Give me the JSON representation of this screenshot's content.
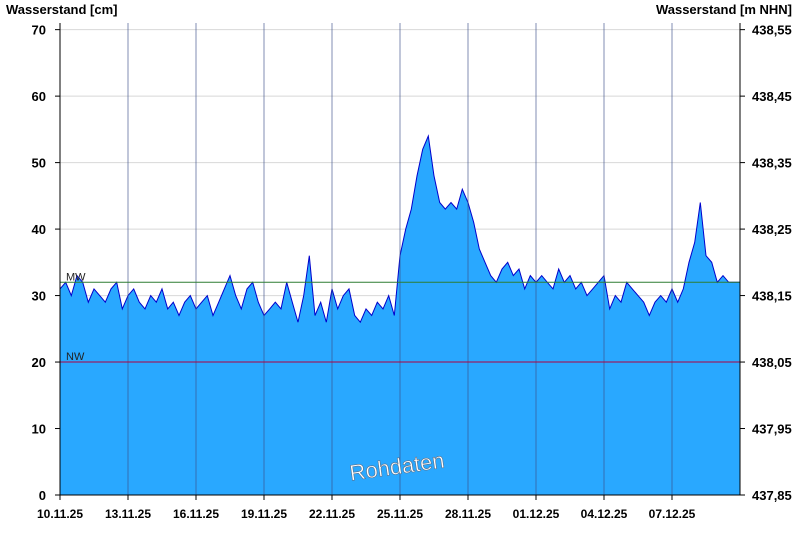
{
  "chart_data": {
    "type": "area",
    "title": "",
    "ylabel_left": "Wasserstand [cm]",
    "ylabel_right": "Wasserstand [m NHN]",
    "ylim": [
      0,
      71
    ],
    "yticks_left": [
      "0",
      "10",
      "20",
      "30",
      "40",
      "50",
      "60",
      "70"
    ],
    "yticks_right": [
      "437,85",
      "437,95",
      "438,05",
      "438,15",
      "438,25",
      "438,35",
      "438,45",
      "438,55"
    ],
    "xlim": [
      "10.11.25",
      "10.12.25"
    ],
    "xtick_labels": [
      "10.11.25",
      "13.11.25",
      "16.11.25",
      "19.11.25",
      "22.11.25",
      "25.11.25",
      "28.11.25",
      "01.12.25",
      "04.12.25",
      "07.12.25"
    ],
    "xtick_days": [
      0,
      3,
      6,
      9,
      12,
      15,
      18,
      21,
      24,
      27
    ],
    "fill_color": "#29a8ff",
    "line_color": "#0000cc",
    "reference_lines": [
      {
        "label": "MW",
        "value": 32,
        "color": "#2e7d32"
      },
      {
        "label": "NW",
        "value": 20,
        "color": "#b00040"
      }
    ],
    "watermark": "Rohdaten",
    "series": [
      {
        "days": [
          0,
          0.25,
          0.5,
          0.75,
          1,
          1.25,
          1.5,
          1.75,
          2,
          2.25,
          2.5,
          2.75,
          3,
          3.25,
          3.5,
          3.75,
          4,
          4.25,
          4.5,
          4.75,
          5,
          5.25,
          5.5,
          5.75,
          6,
          6.25,
          6.5,
          6.75,
          7,
          7.25,
          7.5,
          7.75,
          8,
          8.25,
          8.5,
          8.75,
          9,
          9.25,
          9.5,
          9.75,
          10,
          10.25,
          10.5,
          10.75,
          11,
          11.25,
          11.5,
          11.75,
          12,
          12.25,
          12.5,
          12.75,
          13,
          13.25,
          13.5,
          13.75,
          14,
          14.25,
          14.5,
          14.75,
          15,
          15.25,
          15.5,
          15.75,
          16,
          16.25,
          16.5,
          16.75,
          17,
          17.25,
          17.5,
          17.75,
          18,
          18.25,
          18.5,
          18.75,
          19,
          19.25,
          19.5,
          19.75,
          20,
          20.25,
          20.5,
          20.75,
          21,
          21.25,
          21.5,
          21.75,
          22,
          22.25,
          22.5,
          22.75,
          23,
          23.25,
          23.5,
          23.75,
          24,
          24.25,
          24.5,
          24.75,
          25,
          25.25,
          25.5,
          25.75,
          26,
          26.25,
          26.5,
          26.75,
          27,
          27.25,
          27.5,
          27.75,
          28,
          28.25,
          28.5,
          28.75,
          29,
          29.25,
          29.5,
          29.75,
          30
        ],
        "values": [
          31,
          32,
          30,
          33,
          32,
          29,
          31,
          30,
          29,
          31,
          32,
          28,
          30,
          31,
          29,
          28,
          30,
          29,
          31,
          28,
          29,
          27,
          29,
          30,
          28,
          29,
          30,
          27,
          29,
          31,
          33,
          30,
          28,
          31,
          32,
          29,
          27,
          28,
          29,
          28,
          32,
          29,
          26,
          30,
          36,
          27,
          29,
          26,
          31,
          28,
          30,
          31,
          27,
          26,
          28,
          27,
          29,
          28,
          30,
          27,
          36,
          40,
          43,
          48,
          52,
          54,
          48,
          44,
          43,
          44,
          43,
          46,
          44,
          41,
          37,
          35,
          33,
          32,
          34,
          35,
          33,
          34,
          31,
          33,
          32,
          33,
          32,
          31,
          34,
          32,
          33,
          31,
          32,
          30,
          31,
          32,
          33,
          28,
          30,
          29,
          32,
          31,
          30,
          29,
          27,
          29,
          30,
          29,
          31,
          29,
          31,
          35,
          38,
          44,
          36,
          35,
          32,
          33,
          32,
          32,
          32
        ]
      }
    ]
  }
}
